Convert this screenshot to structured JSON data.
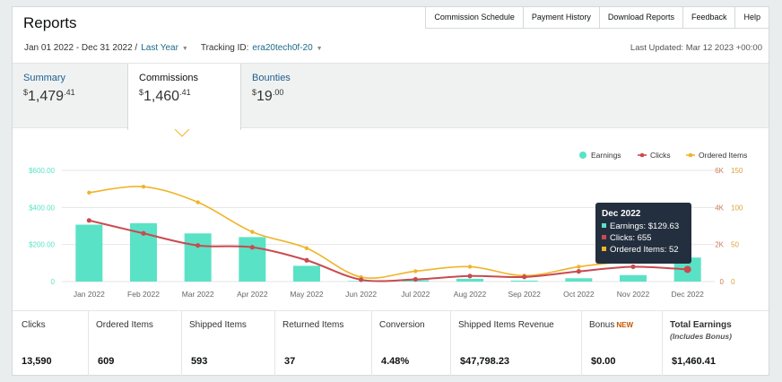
{
  "title": "Reports",
  "topnav": [
    "Commission Schedule",
    "Payment History",
    "Download Reports",
    "Feedback",
    "Help"
  ],
  "filters": {
    "date_range": "Jan 01 2022 - Dec 31 2022 /",
    "period": "Last Year",
    "tracking_label": "Tracking ID:",
    "tracking_id": "era20tech0f-20"
  },
  "last_updated": "Last Updated: Mar 12 2023 +00:00",
  "tabs": [
    {
      "label": "Summary",
      "sym": "$",
      "int": "1,479",
      "dec": ".41"
    },
    {
      "label": "Commissions",
      "sym": "$",
      "int": "1,460",
      "dec": ".41"
    },
    {
      "label": "Bounties",
      "sym": "$",
      "int": "19",
      "dec": ".00"
    }
  ],
  "chart_data": {
    "type": "line",
    "categories": [
      "Jan 2022",
      "Feb 2022",
      "Mar 2022",
      "Apr 2022",
      "May 2022",
      "Jun 2022",
      "Jul 2022",
      "Aug 2022",
      "Sep 2022",
      "Oct 2022",
      "Nov 2022",
      "Dec 2022"
    ],
    "series": [
      {
        "name": "Earnings",
        "kind": "bar",
        "color": "#5ae2c6",
        "axis": "left",
        "values": [
          307,
          315,
          260,
          240,
          85,
          3,
          8,
          15,
          5,
          18,
          35,
          129.63
        ]
      },
      {
        "name": "Clicks",
        "kind": "line",
        "color": "#c94a4f",
        "axis": "right1",
        "values": [
          3300,
          2600,
          1950,
          1850,
          1150,
          100,
          120,
          300,
          250,
          550,
          800,
          655
        ]
      },
      {
        "name": "Ordered Items",
        "kind": "line",
        "color": "#f0b429",
        "axis": "right2",
        "values": [
          120,
          128,
          107,
          67,
          45,
          6,
          14,
          20,
          8,
          20,
          30,
          52
        ]
      }
    ],
    "left_ticks": [
      "$600.00",
      "$400.00",
      "$200.00",
      "0"
    ],
    "right1_ticks": [
      "6K",
      "4K",
      "2K",
      "0"
    ],
    "right2_ticks": [
      "150",
      "100",
      "50",
      "0"
    ],
    "left_ylim": [
      0,
      600
    ],
    "right1_ylim": [
      0,
      6000
    ],
    "right2_ylim": [
      0,
      150
    ],
    "legend_position": "top-right",
    "grid": true
  },
  "tooltip": {
    "title": "Dec 2022",
    "lines": [
      "Earnings: $129.63",
      "Clicks: 655",
      "Ordered Items: 52"
    ]
  },
  "stats": [
    {
      "label": "Clicks",
      "value": "13,590"
    },
    {
      "label": "Ordered Items",
      "value": "609"
    },
    {
      "label": "Shipped Items",
      "value": "593"
    },
    {
      "label": "Returned Items",
      "value": "37"
    },
    {
      "label": "Conversion",
      "value": "4.48%"
    },
    {
      "label": "Shipped Items Revenue",
      "value": "$47,798.23"
    },
    {
      "label": "Bonus",
      "badge": "NEW",
      "value": "$0.00"
    },
    {
      "label": "Total Earnings",
      "note": "(Includes Bonus)",
      "value": "$1,460.41"
    }
  ]
}
